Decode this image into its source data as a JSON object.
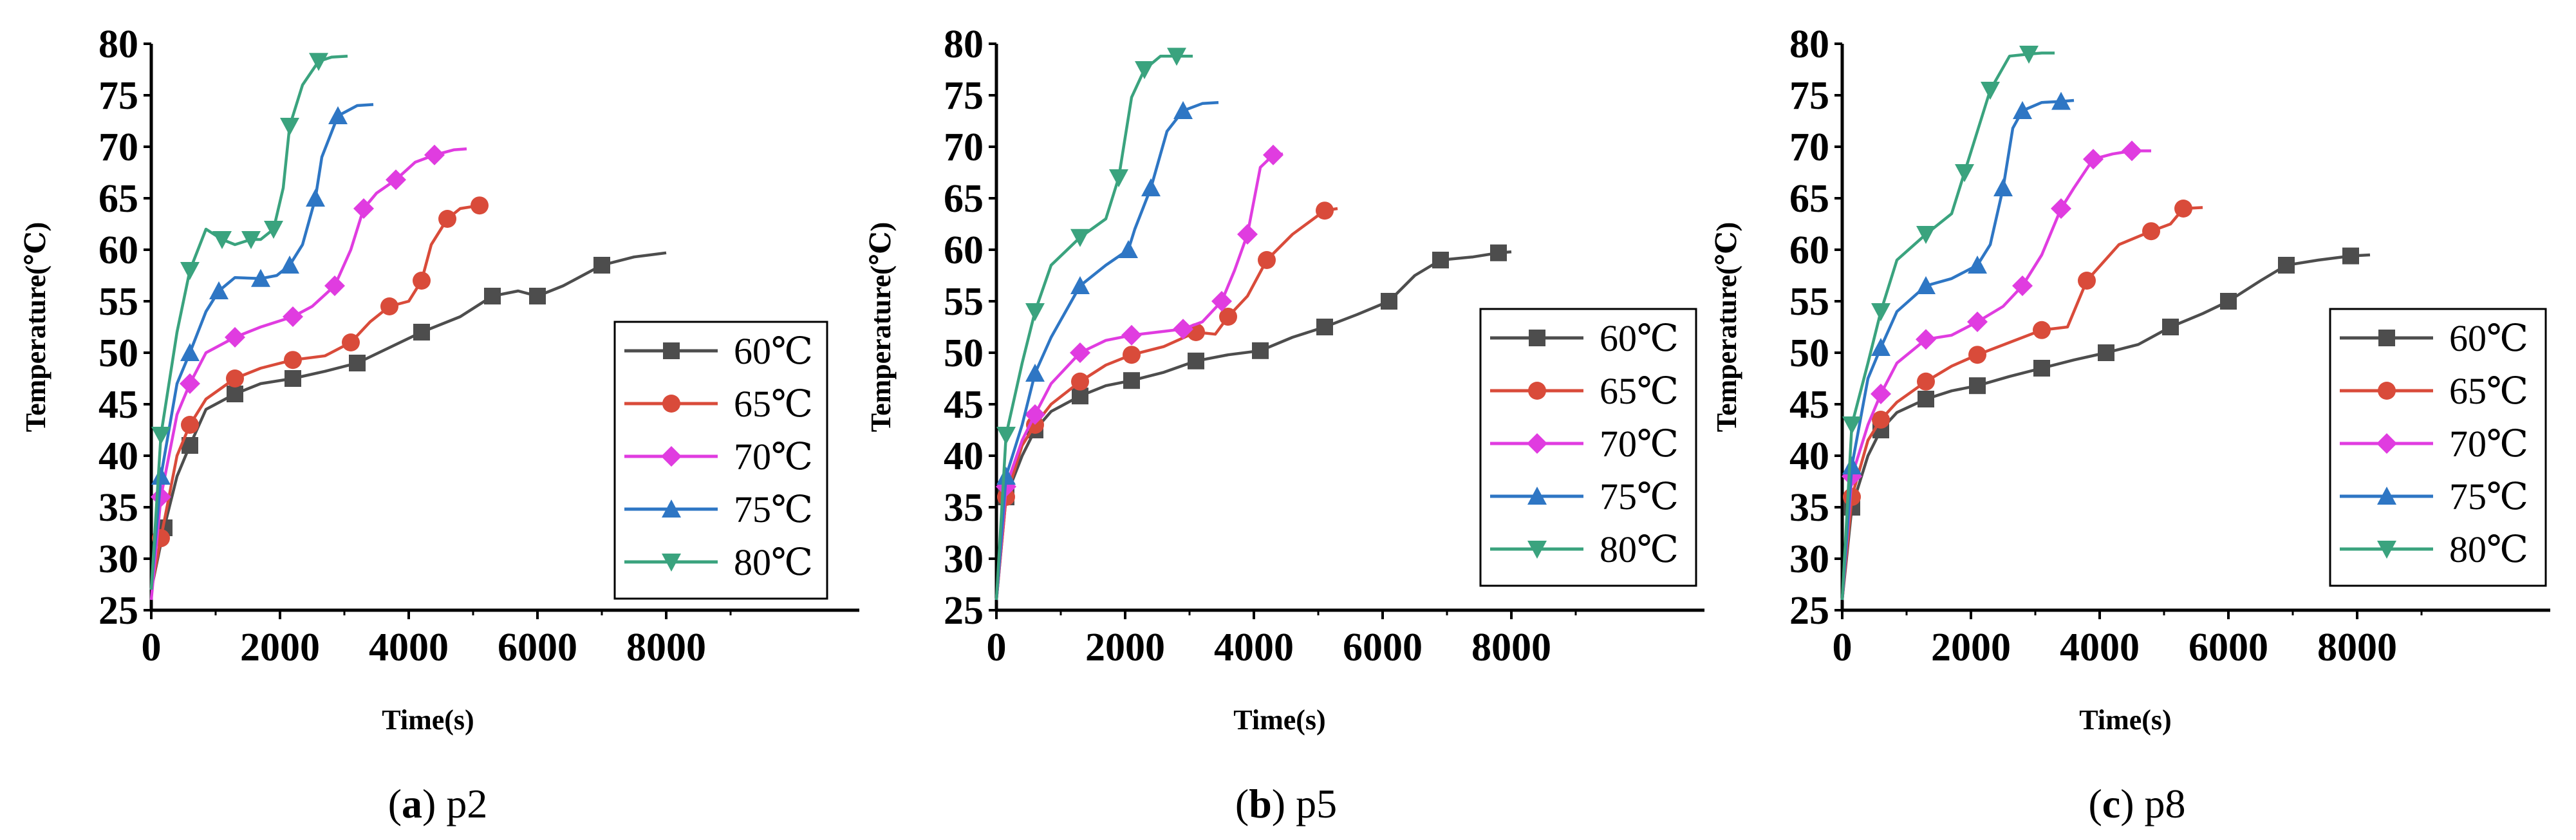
{
  "figure": {
    "panels": [
      {
        "id": "a",
        "letter": "a",
        "label": "p2"
      },
      {
        "id": "b",
        "letter": "b",
        "label": "p5"
      },
      {
        "id": "c",
        "letter": "c",
        "label": "p8"
      }
    ]
  },
  "colors": {
    "60": "#4d4d4d",
    "65": "#d94b3a",
    "70": "#e03ce0",
    "75": "#2e76c4",
    "80": "#3aa37e"
  },
  "chart_data": [
    {
      "type": "line",
      "title": "(a) p2",
      "xlabel": "Time(s)",
      "ylabel": "Temperature(℃)",
      "xlim": [
        0,
        11000
      ],
      "ylim": [
        25,
        80
      ],
      "xticks": [
        0,
        2000,
        4000,
        6000,
        8000
      ],
      "yticks": [
        25,
        30,
        35,
        40,
        45,
        50,
        55,
        60,
        65,
        70,
        75,
        80
      ],
      "legend": "bottom-right",
      "series": [
        {
          "name": "60℃",
          "marker": "square",
          "x": [
            0,
            200,
            400,
            600,
            850,
            1300,
            1700,
            2200,
            2700,
            3200,
            3700,
            4200,
            4800,
            5300,
            5700,
            6000,
            6400,
            7000,
            7500,
            8000
          ],
          "y": [
            27,
            33,
            38,
            41,
            44.5,
            46,
            47,
            47.5,
            48.2,
            49,
            50.5,
            52,
            53.5,
            55.5,
            56,
            55.5,
            56.5,
            58.5,
            59.3,
            59.7
          ]
        },
        {
          "name": "65℃",
          "marker": "circle",
          "x": [
            0,
            150,
            400,
            600,
            850,
            1300,
            1700,
            2200,
            2700,
            3100,
            3400,
            3700,
            4000,
            4200,
            4350,
            4600,
            4800,
            5100,
            5200
          ],
          "y": [
            27,
            32,
            40,
            43,
            45.5,
            47.5,
            48.5,
            49.3,
            49.7,
            51,
            53,
            54.5,
            55,
            57,
            60.5,
            63,
            64,
            64.3,
            64.3
          ]
        },
        {
          "name": "70℃",
          "marker": "diamond",
          "x": [
            0,
            150,
            400,
            600,
            850,
            1300,
            1700,
            2200,
            2500,
            2850,
            3100,
            3300,
            3500,
            3800,
            4100,
            4400,
            4700,
            4900
          ],
          "y": [
            26,
            36,
            44,
            47,
            50,
            51.5,
            52.5,
            53.5,
            54.5,
            56.5,
            60,
            64,
            65.5,
            66.8,
            68.5,
            69.2,
            69.7,
            69.8
          ]
        },
        {
          "name": "75℃",
          "marker": "triangle-up",
          "x": [
            0,
            150,
            400,
            600,
            850,
            1050,
            1300,
            1700,
            1950,
            2150,
            2350,
            2550,
            2650,
            2900,
            3200,
            3450
          ],
          "y": [
            27,
            38,
            47,
            50,
            54,
            56,
            57.3,
            57.2,
            57.5,
            58.5,
            60.5,
            65,
            69,
            73,
            74,
            74.1
          ]
        },
        {
          "name": "80℃",
          "marker": "triangle-down",
          "x": [
            0,
            150,
            400,
            600,
            850,
            1100,
            1300,
            1550,
            1700,
            1900,
            2050,
            2150,
            2350,
            2600,
            2800,
            3050
          ],
          "y": [
            27,
            42,
            52,
            58,
            62,
            61,
            60.5,
            61,
            61,
            62,
            66,
            72,
            76,
            78.3,
            78.7,
            78.8
          ]
        }
      ]
    },
    {
      "type": "line",
      "title": "(b) p5",
      "xlabel": "Time(s)",
      "ylabel": "Temperature(℃)",
      "xlim": [
        0,
        11000
      ],
      "ylim": [
        25,
        80
      ],
      "xticks": [
        0,
        2000,
        4000,
        6000,
        8000
      ],
      "yticks": [
        25,
        30,
        35,
        40,
        45,
        50,
        55,
        60,
        65,
        70,
        75,
        80
      ],
      "legend": "bottom-right",
      "series": [
        {
          "name": "60℃",
          "marker": "square",
          "x": [
            0,
            150,
            400,
            600,
            850,
            1300,
            1700,
            2100,
            2600,
            3100,
            3600,
            4100,
            4600,
            5100,
            5600,
            6100,
            6500,
            6900,
            7400,
            7800,
            8000
          ],
          "y": [
            26,
            36,
            40,
            42.5,
            44.3,
            45.8,
            46.8,
            47.3,
            48.1,
            49.2,
            49.8,
            50.2,
            51.5,
            52.5,
            53.7,
            55,
            57.5,
            59,
            59.3,
            59.7,
            59.8
          ]
        },
        {
          "name": "65℃",
          "marker": "circle",
          "x": [
            0,
            150,
            400,
            600,
            850,
            1300,
            1700,
            2100,
            2600,
            3100,
            3400,
            3600,
            3900,
            4200,
            4600,
            5100,
            5300
          ],
          "y": [
            26,
            36,
            41,
            43,
            45,
            47.2,
            48.8,
            49.8,
            50.6,
            52,
            51.8,
            53.5,
            55.5,
            59,
            61.5,
            63.8,
            64
          ]
        },
        {
          "name": "70℃",
          "marker": "diamond",
          "x": [
            0,
            150,
            400,
            600,
            850,
            1300,
            1700,
            2100,
            2500,
            2900,
            3200,
            3500,
            3700,
            3900,
            4100,
            4300,
            4450
          ],
          "y": [
            26,
            37,
            41.5,
            44,
            47,
            50,
            51.2,
            51.7,
            52,
            52.3,
            53,
            55,
            58,
            61.5,
            68,
            69.2,
            69.3
          ]
        },
        {
          "name": "75℃",
          "marker": "triangle-up",
          "x": [
            0,
            150,
            400,
            600,
            850,
            1300,
            1700,
            2050,
            2150,
            2400,
            2650,
            2900,
            3200,
            3450
          ],
          "y": [
            26,
            38,
            43,
            48,
            51.5,
            56.5,
            58.5,
            60,
            62,
            66,
            71.5,
            73.5,
            74.2,
            74.3
          ]
        },
        {
          "name": "80℃",
          "marker": "triangle-down",
          "x": [
            0,
            150,
            400,
            600,
            850,
            1300,
            1700,
            1900,
            2100,
            2300,
            2550,
            2800,
            3050
          ],
          "y": [
            26,
            42,
            49,
            54,
            58.5,
            61.2,
            63,
            67,
            74.8,
            77.5,
            78.8,
            78.8,
            78.8
          ]
        }
      ]
    },
    {
      "type": "line",
      "title": "(c) p8",
      "xlabel": "Time(s)",
      "ylabel": "Temperature(℃)",
      "xlim": [
        0,
        11000
      ],
      "ylim": [
        25,
        80
      ],
      "xticks": [
        0,
        2000,
        4000,
        6000,
        8000
      ],
      "yticks": [
        25,
        30,
        35,
        40,
        45,
        50,
        55,
        60,
        65,
        70,
        75,
        80
      ],
      "legend": "bottom-right",
      "series": [
        {
          "name": "60℃",
          "marker": "square",
          "x": [
            0,
            150,
            400,
            600,
            850,
            1300,
            1700,
            2100,
            2600,
            3100,
            3600,
            4100,
            4600,
            5100,
            5600,
            6000,
            6500,
            6900,
            7400,
            7900,
            8200
          ],
          "y": [
            26,
            35,
            40,
            42.5,
            44.2,
            45.5,
            46.3,
            46.8,
            47.7,
            48.5,
            49.3,
            50,
            50.8,
            52.5,
            53.8,
            55,
            57,
            58.5,
            59,
            59.4,
            59.5
          ]
        },
        {
          "name": "65℃",
          "marker": "circle",
          "x": [
            0,
            150,
            400,
            600,
            850,
            1300,
            1700,
            2100,
            2600,
            3100,
            3500,
            3800,
            4300,
            4800,
            5100,
            5300,
            5600
          ],
          "y": [
            26,
            36,
            41.5,
            43.5,
            45.2,
            47.2,
            48.7,
            49.8,
            51,
            52.2,
            52.5,
            57,
            60.5,
            61.8,
            62.5,
            64,
            64.1
          ]
        },
        {
          "name": "70℃",
          "marker": "diamond",
          "x": [
            0,
            150,
            400,
            600,
            850,
            1300,
            1700,
            2100,
            2500,
            2800,
            3100,
            3400,
            3600,
            3900,
            4200,
            4500,
            4800
          ],
          "y": [
            26,
            38,
            43,
            46,
            49,
            51.3,
            51.7,
            53,
            54.5,
            56.5,
            59.5,
            64,
            66,
            68.8,
            69.3,
            69.6,
            69.6
          ]
        },
        {
          "name": "75℃",
          "marker": "triangle-up",
          "x": [
            0,
            150,
            400,
            600,
            850,
            1300,
            1700,
            2100,
            2300,
            2500,
            2650,
            2800,
            3100,
            3400,
            3600
          ],
          "y": [
            26,
            39,
            47.5,
            50.5,
            54,
            56.5,
            57.2,
            58.5,
            60.5,
            66,
            71.8,
            73.5,
            74.3,
            74.4,
            74.5
          ]
        },
        {
          "name": "80℃",
          "marker": "triangle-down",
          "x": [
            0,
            150,
            400,
            600,
            850,
            1300,
            1700,
            1900,
            2100,
            2300,
            2600,
            2900,
            3100,
            3300
          ],
          "y": [
            26,
            43,
            49,
            54,
            59,
            61.5,
            63.5,
            67.5,
            71.5,
            75.5,
            78.8,
            79,
            79.1,
            79.1
          ]
        }
      ]
    }
  ]
}
